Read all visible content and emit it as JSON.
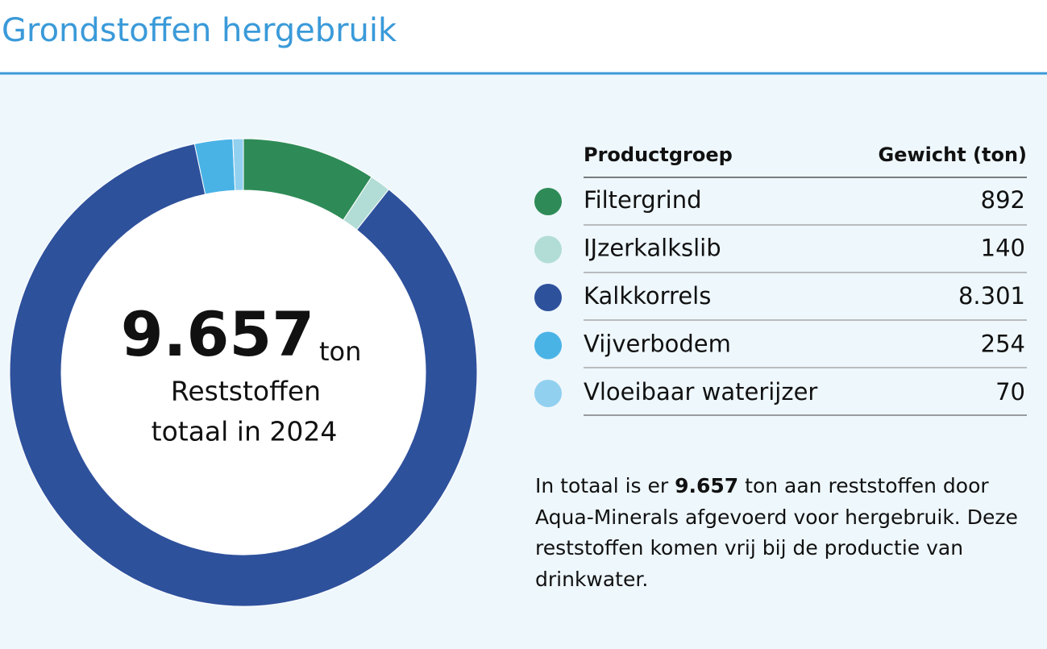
{
  "chart_data": {
    "type": "donut",
    "title": "Grondstoffen hergebruik",
    "center": {
      "total": "9.657",
      "unit": "ton",
      "line1": "Reststoffen",
      "line2": "totaal in 2024"
    },
    "table_headers": [
      "Productgroep",
      "Gewicht (ton)"
    ],
    "categories": [
      "Filtergrind",
      "IJzerkalkslib",
      "Kalkkorrels",
      "Vijverbodem",
      "Vloeibaar waterijzer"
    ],
    "values": [
      892,
      140,
      8301,
      254,
      70
    ],
    "value_labels": [
      "892",
      "140",
      "8.301",
      "254",
      "70"
    ],
    "colors": [
      "#2e8b57",
      "#b2ddd6",
      "#2e519c",
      "#4ab3e6",
      "#92d0f0"
    ],
    "note": {
      "before": "In totaal is er ",
      "bold": "9.657",
      "after": " ton aan reststoffen door Aqua-Minerals afgevoerd voor hergebruik. Deze reststoffen komen vrij bij de productie van drinkwater."
    }
  }
}
